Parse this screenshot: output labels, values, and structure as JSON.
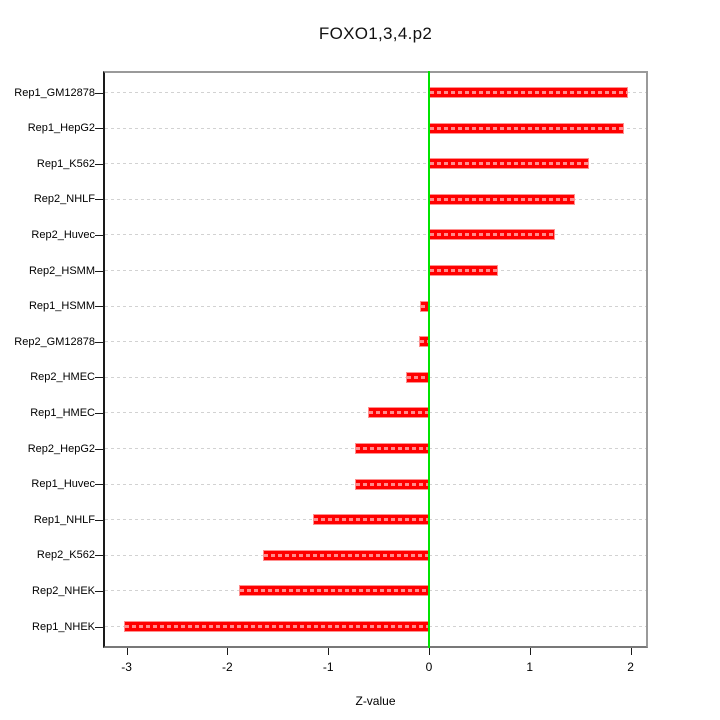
{
  "chart_data": {
    "type": "bar",
    "orientation": "horizontal",
    "title": "FOXO1,3,4.p2",
    "xlabel": "Z-value",
    "ylabel": "",
    "categories": [
      "Rep1_GM12878",
      "Rep1_HepG2",
      "Rep1_K562",
      "Rep2_NHLF",
      "Rep2_Huvec",
      "Rep2_HSMM",
      "Rep1_HSMM",
      "Rep2_GM12878",
      "Rep2_HMEC",
      "Rep1_HMEC",
      "Rep2_HepG2",
      "Rep1_Huvec",
      "Rep1_NHLF",
      "Rep2_K562",
      "Rep2_NHEK",
      "Rep1_NHEK"
    ],
    "values": [
      1.97,
      1.93,
      1.59,
      1.45,
      1.25,
      0.68,
      -0.09,
      -0.1,
      -0.23,
      -0.6,
      -0.73,
      -0.73,
      -1.15,
      -1.65,
      -1.88,
      -3.03
    ],
    "x_ticks": [
      -3,
      -2,
      -1,
      0,
      1,
      2
    ],
    "xlim": [
      -3.234,
      2.173
    ],
    "grid": "dotted horizontal line per row",
    "legend": "none",
    "zero_reference_line": 0,
    "colors": {
      "bar_fill": "#ff0000",
      "bar_border": "#ff8f8f",
      "bar_dash_overlay": "rgba(255,255,255,0.55)",
      "zero_line": "#00e400",
      "grid_line": "#d2d2d2",
      "box_border": "#9a9a9a",
      "axis_line": "#1a1a1a",
      "text": "#000000",
      "background": "#ffffff"
    }
  }
}
